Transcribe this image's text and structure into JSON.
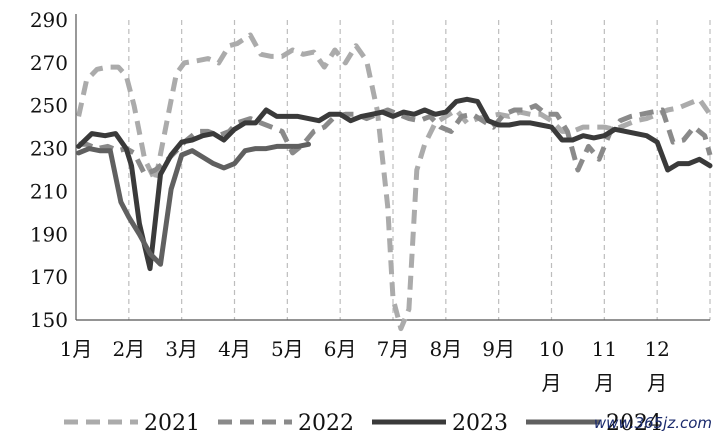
{
  "chart_data": {
    "type": "line",
    "title": "",
    "xlabel": "",
    "ylabel": "",
    "ylim": [
      150,
      290
    ],
    "yticks": [
      150,
      170,
      190,
      210,
      230,
      250,
      270,
      290
    ],
    "xlim": [
      1,
      13
    ],
    "month_labels": [
      {
        "x": 1,
        "top": "1月",
        "bottom": ""
      },
      {
        "x": 2,
        "top": "2月",
        "bottom": ""
      },
      {
        "x": 3,
        "top": "3月",
        "bottom": ""
      },
      {
        "x": 4,
        "top": "4月",
        "bottom": ""
      },
      {
        "x": 5,
        "top": "5月",
        "bottom": ""
      },
      {
        "x": 6,
        "top": "6月",
        "bottom": ""
      },
      {
        "x": 7,
        "top": "7月",
        "bottom": ""
      },
      {
        "x": 8,
        "top": "8月",
        "bottom": ""
      },
      {
        "x": 9,
        "top": "9月",
        "bottom": ""
      },
      {
        "x": 10,
        "top": "10",
        "bottom": "月"
      },
      {
        "x": 11,
        "top": "11",
        "bottom": "月"
      },
      {
        "x": 12,
        "top": "12",
        "bottom": "月"
      }
    ],
    "grid": "vertical dashed at months",
    "legend_position": "bottom",
    "series": [
      {
        "name": "2021",
        "color": "#ababab",
        "style": "dashed",
        "x": [
          1.05,
          1.2,
          1.4,
          1.6,
          1.8,
          1.95,
          2.1,
          2.3,
          2.5,
          2.7,
          2.9,
          3.05,
          3.3,
          3.5,
          3.7,
          3.9,
          4.05,
          4.3,
          4.5,
          4.7,
          4.9,
          5.1,
          5.3,
          5.5,
          5.7,
          5.9,
          6.1,
          6.3,
          6.5,
          6.7,
          6.9,
          7.0,
          7.15,
          7.3,
          7.45,
          7.6,
          7.8,
          8.0,
          8.2,
          8.4,
          8.6,
          8.8,
          9.0,
          9.2,
          9.4,
          9.6,
          9.8,
          10.0,
          10.2,
          10.4,
          10.6,
          10.8,
          11.0,
          11.2,
          11.4,
          11.6,
          11.8,
          12.0,
          12.2,
          12.4,
          12.6,
          12.8,
          13.0
        ],
        "y": [
          245,
          262,
          267,
          268,
          268,
          264,
          250,
          225,
          215,
          240,
          265,
          270,
          271,
          272,
          270,
          278,
          279,
          283,
          274,
          273,
          273,
          276,
          274,
          275,
          268,
          276,
          270,
          278,
          271,
          248,
          203,
          160,
          146,
          155,
          220,
          232,
          242,
          245,
          248,
          242,
          244,
          245,
          246,
          245,
          247,
          246,
          246,
          243,
          238,
          238,
          240,
          240,
          240,
          239,
          241,
          243,
          244,
          246,
          248,
          249,
          251,
          253,
          246
        ]
      },
      {
        "name": "2022",
        "color": "#8a8a8a",
        "style": "dashed",
        "x": [
          1.05,
          1.2,
          1.4,
          1.6,
          1.8,
          1.95,
          2.1,
          2.3,
          2.5,
          2.7,
          2.9,
          3.05,
          3.3,
          3.5,
          3.7,
          3.9,
          4.05,
          4.3,
          4.5,
          4.7,
          4.9,
          5.1,
          5.3,
          5.5,
          5.7,
          5.9,
          6.1,
          6.3,
          6.5,
          6.7,
          6.9,
          7.1,
          7.3,
          7.5,
          7.7,
          7.9,
          8.1,
          8.3,
          8.5,
          8.7,
          8.9,
          9.1,
          9.3,
          9.5,
          9.7,
          9.9,
          10.1,
          10.3,
          10.5,
          10.7,
          10.9,
          11.1,
          11.3,
          11.5,
          11.7,
          11.9,
          12.1,
          12.3,
          12.5,
          12.7,
          12.9,
          13.0
        ],
        "y": [
          232,
          232,
          230,
          231,
          229,
          230,
          228,
          218,
          220,
          224,
          229,
          233,
          238,
          238,
          236,
          238,
          242,
          244,
          242,
          240,
          238,
          228,
          232,
          238,
          240,
          245,
          246,
          246,
          244,
          246,
          248,
          246,
          244,
          243,
          245,
          240,
          238,
          245,
          246,
          243,
          240,
          246,
          248,
          248,
          250,
          246,
          246,
          238,
          220,
          231,
          225,
          237,
          243,
          245,
          246,
          247,
          248,
          233,
          234,
          240,
          236,
          227
        ]
      },
      {
        "name": "2023",
        "color": "#3a3a3a",
        "style": "solid",
        "x": [
          1.05,
          1.3,
          1.55,
          1.75,
          1.95,
          2.05,
          2.2,
          2.4,
          2.6,
          2.8,
          3.0,
          3.2,
          3.4,
          3.6,
          3.8,
          4.0,
          4.2,
          4.4,
          4.6,
          4.8,
          5.0,
          5.2,
          5.4,
          5.6,
          5.8,
          6.0,
          6.2,
          6.4,
          6.6,
          6.8,
          7.0,
          7.2,
          7.4,
          7.6,
          7.8,
          8.0,
          8.2,
          8.4,
          8.6,
          8.8,
          9.0,
          9.2,
          9.4,
          9.6,
          9.8,
          10.0,
          10.2,
          10.4,
          10.6,
          10.8,
          11.0,
          11.2,
          11.4,
          11.6,
          11.8,
          12.0,
          12.2,
          12.4,
          12.6,
          12.8,
          13.0
        ],
        "y": [
          231,
          237,
          236,
          237,
          230,
          222,
          195,
          174,
          218,
          227,
          233,
          234,
          236,
          237,
          234,
          239,
          242,
          242,
          248,
          245,
          245,
          245,
          244,
          243,
          246,
          246,
          243,
          245,
          246,
          247,
          245,
          247,
          246,
          248,
          246,
          247,
          252,
          253,
          252,
          243,
          241,
          241,
          242,
          242,
          241,
          240,
          234,
          234,
          236,
          235,
          236,
          239,
          238,
          237,
          236,
          233,
          220,
          223,
          223,
          225,
          222
        ]
      },
      {
        "name": "2024",
        "color": "#606060",
        "style": "solid",
        "x": [
          1.05,
          1.25,
          1.45,
          1.65,
          1.85,
          2.0,
          2.2,
          2.4,
          2.6,
          2.8,
          3.0,
          3.2,
          3.4,
          3.6,
          3.8,
          4.0,
          4.2,
          4.4,
          4.6,
          4.8,
          5.0,
          5.2,
          5.4
        ],
        "y": [
          228,
          230,
          229,
          229,
          205,
          198,
          190,
          181,
          176,
          211,
          227,
          229,
          226,
          223,
          221,
          223,
          229,
          230,
          230,
          231,
          231,
          231,
          232
        ]
      }
    ]
  },
  "watermark": "www.365jz.com"
}
